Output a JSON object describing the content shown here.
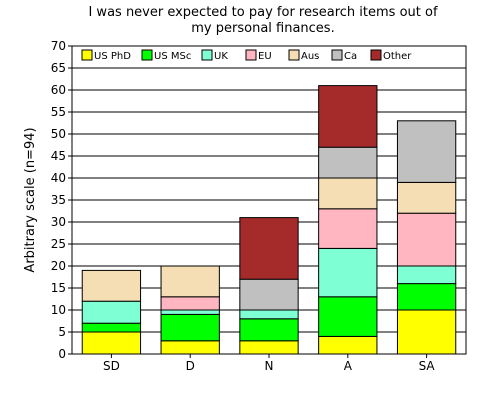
{
  "chart_data": {
    "type": "bar",
    "stacked": true,
    "title_lines": [
      "I was never expected to pay for research items out of",
      "my personal finances."
    ],
    "xlabel": "",
    "ylabel": "Arbitrary scale (n=94)",
    "ylim": [
      0,
      70
    ],
    "yticks": [
      0,
      5,
      10,
      15,
      20,
      25,
      30,
      35,
      40,
      45,
      50,
      55,
      60,
      65,
      70
    ],
    "grid": true,
    "legend_position": "top",
    "categories": [
      "SD",
      "D",
      "N",
      "A",
      "SA"
    ],
    "series": [
      {
        "name": "US PhD",
        "color": "#ffff00",
        "values": [
          5,
          3,
          3,
          4,
          10
        ]
      },
      {
        "name": "US MSc",
        "color": "#00ff00",
        "values": [
          2,
          6,
          5,
          9,
          6
        ]
      },
      {
        "name": "UK",
        "color": "#7fffd4",
        "values": [
          5,
          1,
          2,
          11,
          4
        ]
      },
      {
        "name": "EU",
        "color": "#ffb6c1",
        "values": [
          0,
          3,
          0,
          9,
          12
        ]
      },
      {
        "name": "Aus",
        "color": "#f5deb3",
        "values": [
          7,
          7,
          0,
          7,
          7
        ]
      },
      {
        "name": "Ca",
        "color": "#c0c0c0",
        "values": [
          0,
          0,
          7,
          7,
          14
        ]
      },
      {
        "name": "Other",
        "color": "#a52a2a",
        "values": [
          0,
          0,
          14,
          14,
          0
        ]
      }
    ]
  }
}
